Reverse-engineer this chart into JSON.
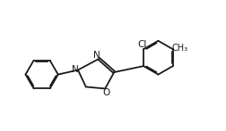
{
  "bg_color": "#ffffff",
  "bond_color": "#1a1a1a",
  "text_color": "#1a1a1a",
  "bond_lw": 1.3,
  "font_size": 7.5,
  "xlim": [
    0.0,
    10.0
  ],
  "ylim": [
    0.5,
    6.0
  ]
}
